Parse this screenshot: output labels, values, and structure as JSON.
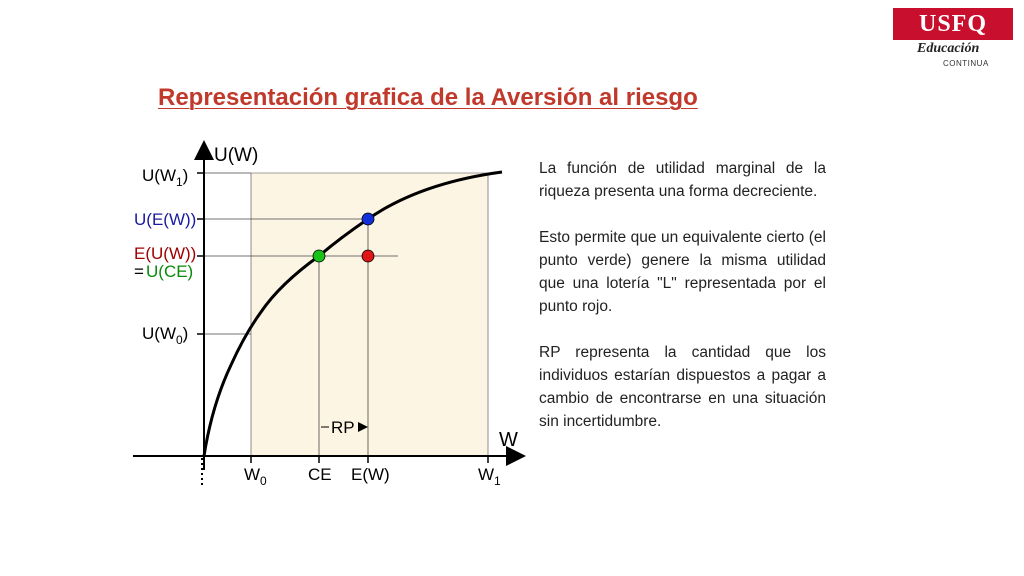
{
  "logo": {
    "brand": "USFQ",
    "subtitle": "Educación",
    "tagline": "CONTINUA",
    "color": "#c8102e"
  },
  "title": "Representación grafica de la Aversión al riesgo",
  "diagram": {
    "y_axis_label": "U(W)",
    "x_axis_label": "W",
    "y_labels": {
      "u_w1": "U(W",
      "u_w1_sub": "1",
      "u_ew": "U(E(W))",
      "e_uw": "E(U(W))",
      "u_ce_eq": "=",
      "u_ce": "U(CE)",
      "u_w0": "U(W",
      "u_w0_sub": "0"
    },
    "x_labels": {
      "w0": "W",
      "w0_sub": "0",
      "ce": "CE",
      "ew": "E(W)",
      "w1": "W",
      "w1_sub": "1"
    },
    "rp_label": "RP",
    "colors": {
      "shade": "#fdf5e3",
      "blue_point": "#1230d8",
      "green_point": "#19c219",
      "red_point": "#e01515",
      "blue_text": "#1a1aa0",
      "red_text": "#a00000",
      "green_text": "#0a8a0a"
    }
  },
  "paragraphs": [
    "La función de utilidad marginal de la riqueza presenta una forma decreciente.",
    "Esto permite que un equivalente cierto (el punto verde) genere la misma utilidad que una lotería \"L\" representada por el punto rojo.",
    "RP representa la cantidad que los individuos estarían dispuestos a pagar a cambio de encontrarse en una situación sin incertidumbre."
  ]
}
